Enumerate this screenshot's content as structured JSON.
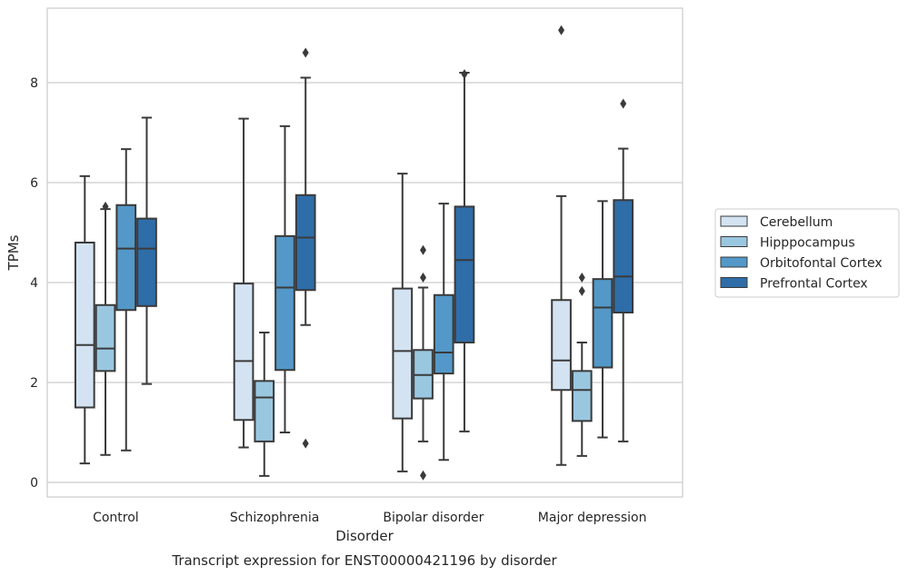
{
  "chart_data": {
    "type": "box",
    "title": "",
    "caption": "Transcript expression for ENST00000421196 by disorder",
    "xlabel": "Disorder",
    "ylabel": "TPMs",
    "ylim": [
      -0.3,
      9.8
    ],
    "yticks": [
      0,
      2,
      4,
      6,
      8
    ],
    "grid": "horizontal",
    "legend_position": "right",
    "categories": [
      "Control",
      "Schizophrenia",
      "Bipolar disorder",
      "Major depression"
    ],
    "series": [
      {
        "name": "Cerebellum",
        "color": "#d3e3f2",
        "boxes": [
          {
            "whisker_low": 0.38,
            "q1": 1.5,
            "median": 2.75,
            "q3": 4.8,
            "whisker_high": 6.13,
            "outliers": []
          },
          {
            "whisker_low": 0.7,
            "q1": 1.25,
            "median": 2.43,
            "q3": 3.98,
            "whisker_high": 7.28,
            "outliers": []
          },
          {
            "whisker_low": 0.22,
            "q1": 1.28,
            "median": 2.63,
            "q3": 3.88,
            "whisker_high": 6.18,
            "outliers": []
          },
          {
            "whisker_low": 0.35,
            "q1": 1.85,
            "median": 2.44,
            "q3": 3.65,
            "whisker_high": 5.73,
            "outliers": [
              9.05
            ]
          }
        ]
      },
      {
        "name": "Hipppocampus",
        "color": "#9ac7e0",
        "boxes": [
          {
            "whisker_low": 0.55,
            "q1": 2.23,
            "median": 2.68,
            "q3": 3.55,
            "whisker_high": 5.47,
            "outliers": [
              5.52
            ]
          },
          {
            "whisker_low": 0.13,
            "q1": 0.82,
            "median": 1.7,
            "q3": 2.03,
            "whisker_high": 3.0,
            "outliers": []
          },
          {
            "whisker_low": 0.82,
            "q1": 1.68,
            "median": 2.15,
            "q3": 2.65,
            "whisker_high": 3.9,
            "outliers": [
              0.14,
              4.1,
              4.65
            ]
          },
          {
            "whisker_low": 0.53,
            "q1": 1.23,
            "median": 1.85,
            "q3": 2.23,
            "whisker_high": 2.8,
            "outliers": [
              3.83,
              4.1
            ]
          }
        ]
      },
      {
        "name": "Orbitofontal Cortex",
        "color": "#5398c8",
        "boxes": [
          {
            "whisker_low": 0.64,
            "q1": 3.45,
            "median": 4.68,
            "q3": 5.55,
            "whisker_high": 6.67,
            "outliers": []
          },
          {
            "whisker_low": 1.0,
            "q1": 2.25,
            "median": 3.9,
            "q3": 4.93,
            "whisker_high": 7.13,
            "outliers": []
          },
          {
            "whisker_low": 0.45,
            "q1": 2.18,
            "median": 2.6,
            "q3": 3.75,
            "whisker_high": 5.58,
            "outliers": []
          },
          {
            "whisker_low": 0.9,
            "q1": 2.3,
            "median": 3.5,
            "q3": 4.07,
            "whisker_high": 5.63,
            "outliers": []
          }
        ]
      },
      {
        "name": "Prefrontal Cortex",
        "color": "#2e6da8",
        "boxes": [
          {
            "whisker_low": 1.97,
            "q1": 3.53,
            "median": 4.68,
            "q3": 5.28,
            "whisker_high": 7.3,
            "outliers": []
          },
          {
            "whisker_low": 3.15,
            "q1": 3.85,
            "median": 4.9,
            "q3": 5.75,
            "whisker_high": 8.1,
            "outliers": [
              0.78,
              8.6
            ]
          },
          {
            "whisker_low": 1.02,
            "q1": 2.8,
            "median": 4.45,
            "q3": 5.52,
            "whisker_high": 8.2,
            "outliers": [
              8.17
            ]
          },
          {
            "whisker_low": 0.82,
            "q1": 3.4,
            "median": 4.12,
            "q3": 5.65,
            "whisker_high": 6.68,
            "outliers": [
              7.58
            ]
          }
        ]
      }
    ]
  }
}
